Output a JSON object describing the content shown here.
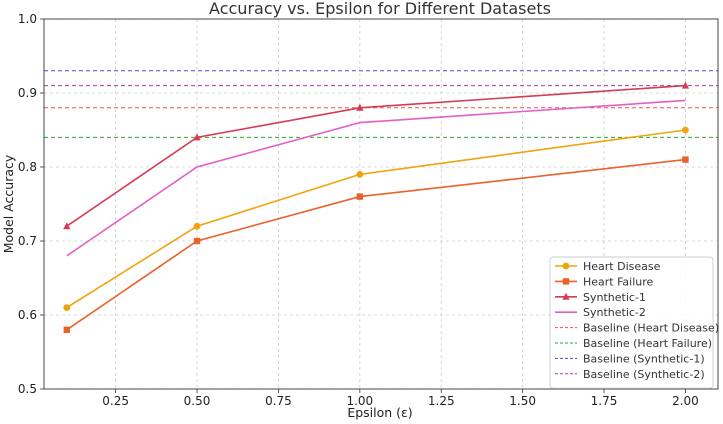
{
  "chart_data": {
    "type": "line",
    "title": "Accuracy vs. Epsilon for Different Datasets",
    "xlabel": "Epsilon (ε)",
    "ylabel": "Model Accuracy",
    "xlim": [
      0.03,
      2.1
    ],
    "ylim": [
      0.5,
      1.0
    ],
    "xticks": [
      0.25,
      0.5,
      0.75,
      1.0,
      1.25,
      1.5,
      1.75,
      2.0
    ],
    "xtick_labels": [
      "0.25",
      "0.50",
      "0.75",
      "1.00",
      "1.25",
      "1.50",
      "1.75",
      "2.00"
    ],
    "yticks": [
      0.5,
      0.6,
      0.7,
      0.8,
      0.9,
      1.0
    ],
    "ytick_labels": [
      "0.5",
      "0.6",
      "0.7",
      "0.8",
      "0.9",
      "1.0"
    ],
    "grid": true,
    "legend_position": "lower-right",
    "x": [
      0.1,
      0.5,
      1.0,
      2.0
    ],
    "series": [
      {
        "name": "Heart Disease",
        "values": [
          0.61,
          0.72,
          0.79,
          0.85
        ],
        "color": "#f0a30a",
        "marker": "circle"
      },
      {
        "name": "Heart Failure",
        "values": [
          0.58,
          0.7,
          0.76,
          0.81
        ],
        "color": "#e8622a",
        "marker": "square"
      },
      {
        "name": "Synthetic-1",
        "values": [
          0.72,
          0.84,
          0.88,
          0.91
        ],
        "color": "#d63a55",
        "marker": "triangle"
      },
      {
        "name": "Synthetic-2",
        "values": [
          0.68,
          0.8,
          0.86,
          0.89
        ],
        "color": "#e35fc8",
        "marker": "none"
      }
    ],
    "baselines": [
      {
        "name": "Baseline (Heart Disease)",
        "value": 0.88,
        "color": "#f05050"
      },
      {
        "name": "Baseline (Heart Failure)",
        "value": 0.84,
        "color": "#2ea82e"
      },
      {
        "name": "Baseline (Synthetic-1)",
        "value": 0.93,
        "color": "#4a4ae0"
      },
      {
        "name": "Baseline (Synthetic-2)",
        "value": 0.91,
        "color": "#a040a0"
      }
    ]
  }
}
